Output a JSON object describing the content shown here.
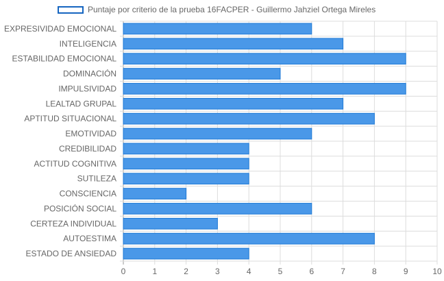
{
  "chart_data": {
    "type": "bar",
    "orientation": "horizontal",
    "title": "",
    "xlabel": "",
    "ylabel": "",
    "xlim": [
      0,
      10
    ],
    "x_ticks": [
      0,
      1,
      2,
      3,
      4,
      5,
      6,
      7,
      8,
      9,
      10
    ],
    "grid": true,
    "legend_position": "top",
    "categories": [
      "EXPRESIVIDAD EMOCIONAL",
      "INTELIGENCIA",
      "ESTABILIDAD EMOCIONAL",
      "DOMINACIÓN",
      "IMPULSIVIDAD",
      "LEALTAD GRUPAL",
      "APTITUD SITUACIONAL",
      "EMOTIVIDAD",
      "CREDIBILIDAD",
      "ACTITUD COGNITIVA",
      "SUTILEZA",
      "CONSCIENCIA",
      "POSICIÓN SOCIAL",
      "CERTEZA INDIVIDUAL",
      "AUTOESTIMA",
      "ESTADO DE ANSIEDAD"
    ],
    "series": [
      {
        "name": "Puntaje por criterio de la prueba 16FACPER - Guillermo Jahziel Ortega Mireles",
        "values": [
          6,
          7,
          9,
          5,
          9,
          7,
          8,
          6,
          4,
          4,
          4,
          2,
          6,
          3,
          8,
          4
        ],
        "color": "#4a98e8",
        "border_color": "#1f7ad6"
      }
    ]
  },
  "colors": {
    "bar_fill": "#4a98e8",
    "bar_border": "#1f7ad6",
    "grid": "#dcdcdc",
    "axis_text": "#666666"
  }
}
